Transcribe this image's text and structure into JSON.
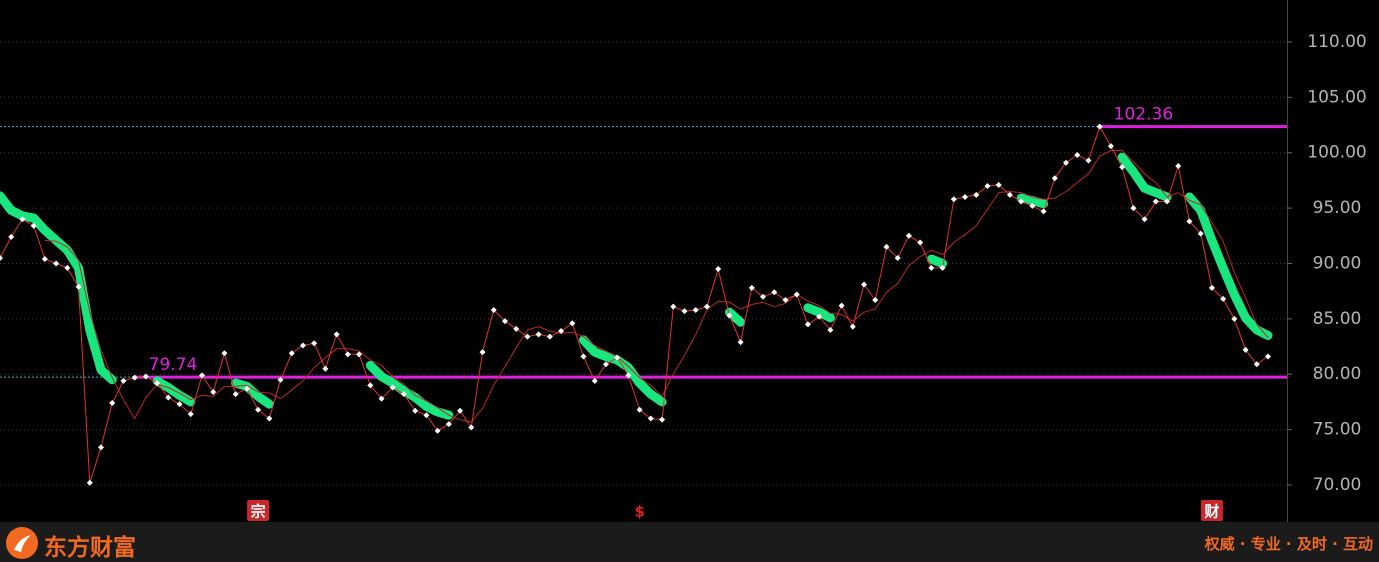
{
  "chart_data": {
    "type": "line",
    "ylim": [
      66.66,
      113.79
    ],
    "yticks": [
      {
        "value": 70,
        "label": "70.00"
      },
      {
        "value": 75,
        "label": "75.00"
      },
      {
        "value": 80,
        "label": "80.00"
      },
      {
        "value": 85,
        "label": "85.00"
      },
      {
        "value": 90,
        "label": "90.00"
      },
      {
        "value": 95,
        "label": "95.00"
      },
      {
        "value": 100,
        "label": "100.00"
      },
      {
        "value": 105,
        "label": "105.00"
      },
      {
        "value": 110,
        "label": "110.00"
      }
    ],
    "grid": true,
    "series": [
      {
        "color": "#e03526",
        "markers": true,
        "values": [
          90.5,
          92.4,
          94.0,
          93.4,
          90.4,
          90.0,
          89.6,
          87.9,
          70.2,
          73.4,
          77.4,
          79.4,
          79.7,
          79.8,
          79.2,
          77.9,
          77.3,
          76.4,
          79.9,
          78.4,
          81.9,
          78.2,
          78.7,
          76.8,
          76.0,
          79.5,
          81.9,
          82.6,
          82.8,
          80.5,
          83.6,
          81.8,
          81.8,
          79.0,
          77.8,
          78.8,
          78.2,
          76.7,
          76.3,
          74.9,
          75.5,
          76.7,
          75.2,
          82.0,
          85.8,
          84.8,
          84.1,
          83.4,
          83.6,
          83.4,
          83.9,
          84.6,
          81.6,
          79.4,
          80.9,
          81.5,
          79.9,
          76.8,
          76.0,
          75.9,
          86.1,
          85.7,
          85.8,
          86.1,
          89.5,
          85.3,
          82.9,
          87.8,
          87.0,
          87.4,
          86.7,
          87.2,
          84.5,
          85.2,
          84.0,
          86.2,
          84.3,
          88.1,
          86.7,
          91.5,
          90.5,
          92.5,
          91.9,
          89.6,
          89.6,
          95.8,
          96.0,
          96.2,
          97.0,
          97.1,
          96.2,
          95.6,
          95.2,
          94.7,
          97.7,
          99.1,
          99.8,
          99.3,
          102.36,
          100.6,
          98.7,
          95.0,
          94.0,
          95.6,
          95.6,
          98.8,
          93.8,
          92.7,
          87.8,
          86.8,
          85.0,
          82.2,
          80.9,
          81.6
        ]
      },
      {
        "color": "#b8291c",
        "markers": false,
        "values": [
          null,
          null,
          null,
          null,
          92.1,
          92.0,
          91.5,
          90.3,
          85.6,
          82.2,
          79.7,
          77.7,
          76.0,
          77.9,
          79.1,
          78.8,
          78.3,
          77.7,
          78.1,
          78.0,
          78.9,
          78.9,
          79.0,
          78.4,
          78.3,
          77.8,
          78.6,
          79.4,
          80.6,
          81.5,
          82.3,
          82.3,
          82.1,
          81.3,
          80.8,
          79.8,
          79.1,
          78.1,
          77.6,
          77.0,
          76.3,
          75.9,
          75.7,
          76.9,
          79.0,
          80.7,
          82.4,
          84.0,
          84.3,
          83.9,
          83.7,
          83.8,
          83.4,
          82.6,
          82.1,
          81.6,
          80.7,
          79.7,
          79.0,
          78.0,
          80.0,
          81.7,
          83.6,
          85.8,
          86.6,
          86.5,
          85.9,
          86.3,
          86.5,
          86.1,
          86.4,
          87.2,
          86.6,
          86.2,
          85.5,
          85.4,
          84.8,
          85.6,
          85.9,
          87.4,
          88.2,
          89.8,
          90.6,
          91.2,
          90.8,
          91.9,
          92.6,
          93.4,
          94.9,
          96.4,
          96.5,
          96.4,
          96.0,
          95.8,
          95.9,
          96.5,
          97.3,
          98.1,
          99.7,
          100.2,
          100.2,
          99.2,
          98.1,
          97.3,
          96.0,
          96.4,
          95.7,
          95.3,
          93.7,
          92.0,
          89.2,
          86.9,
          84.5,
          83.3
        ]
      },
      {
        "color": "#19e67f",
        "markers": false,
        "thick": true,
        "values": [
          96.1,
          94.8,
          94.3,
          94.1,
          93.0,
          92.1,
          91.2,
          89.6,
          84.0,
          80.4,
          79.5,
          null,
          null,
          null,
          79.4,
          78.8,
          78.1,
          77.5,
          null,
          null,
          null,
          79.2,
          78.9,
          78.0,
          77.3,
          null,
          null,
          null,
          null,
          null,
          null,
          null,
          null,
          80.8,
          79.8,
          79.2,
          78.5,
          77.9,
          77.1,
          76.6,
          76.3,
          null,
          null,
          null,
          null,
          null,
          null,
          null,
          null,
          null,
          null,
          null,
          83.1,
          82.0,
          81.6,
          81.3,
          80.6,
          79.2,
          78.2,
          77.5,
          null,
          null,
          null,
          null,
          null,
          85.6,
          84.7,
          null,
          null,
          null,
          null,
          null,
          86.0,
          85.6,
          85.1,
          null,
          null,
          null,
          null,
          null,
          null,
          null,
          null,
          90.4,
          90.0,
          null,
          null,
          null,
          null,
          null,
          null,
          95.9,
          95.7,
          95.4,
          null,
          null,
          null,
          null,
          null,
          null,
          99.6,
          98.3,
          96.8,
          96.4,
          96.0,
          null,
          96.0,
          94.8,
          92.1,
          89.6,
          87.2,
          85.1,
          84.0,
          83.5
        ]
      }
    ],
    "reference_lines": [
      102.36,
      79.74
    ],
    "events": [
      {
        "index": 23,
        "label": "宗"
      },
      {
        "index": 57,
        "label": "$"
      },
      {
        "index": 108,
        "label": "财"
      }
    ]
  },
  "footer": {
    "brand": "东方财富",
    "slogan": "权威 · 专业 · 及时 · 互动"
  }
}
